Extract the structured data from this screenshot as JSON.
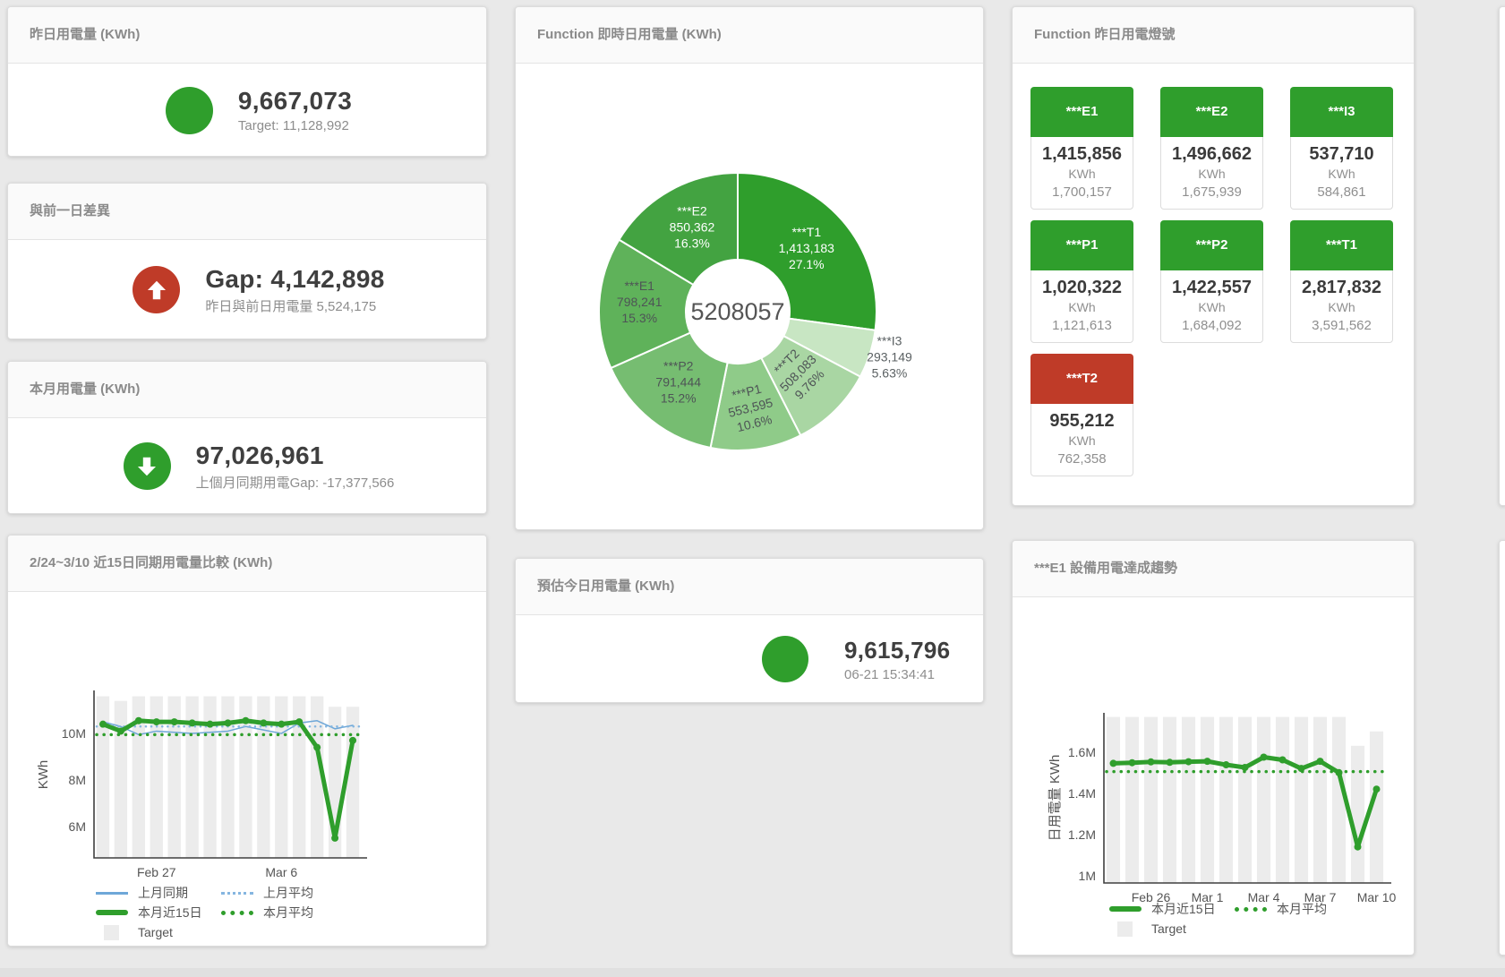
{
  "cards": {
    "yesterday": {
      "title": "昨日用電量 (KWh)",
      "value": "9,667,073",
      "subtitle": "Target: 11,128,992",
      "status_color": "#2f9e2c"
    },
    "day_gap": {
      "title": "與前一日差異",
      "value": "Gap: 4,142,898",
      "subtitle": "昨日與前日用電量 5,524,175",
      "status_color": "#bf3b28"
    },
    "month": {
      "title": "本月用電量 (KWh)",
      "value": "97,026,961",
      "subtitle": "上個月同期用電Gap: -17,377,566",
      "status_color": "#2f9e2c"
    },
    "estimate": {
      "title": "預估今日用電量 (KWh)",
      "value": "9,615,796",
      "subtitle": "06-21 15:34:41",
      "status_color": "#2f9e2c"
    },
    "compare": {
      "title": "2/24~3/10 近15日同期用電量比較 (KWh)"
    },
    "donut": {
      "title": "Function 即時日用電量 (KWh)"
    },
    "trend": {
      "title": "***E1 設備用電達成趨勢"
    },
    "lights": {
      "title": "Function 昨日用電燈號",
      "tiles": [
        {
          "label": "***E1",
          "value": "1,415,856",
          "unit": "KWh",
          "target": "1,700,157",
          "color": "#2f9e2c"
        },
        {
          "label": "***E2",
          "value": "1,496,662",
          "unit": "KWh",
          "target": "1,675,939",
          "color": "#2f9e2c"
        },
        {
          "label": "***I3",
          "value": "537,710",
          "unit": "KWh",
          "target": "584,861",
          "color": "#2f9e2c"
        },
        {
          "label": "***P1",
          "value": "1,020,322",
          "unit": "KWh",
          "target": "1,121,613",
          "color": "#2f9e2c"
        },
        {
          "label": "***P2",
          "value": "1,422,557",
          "unit": "KWh",
          "target": "1,684,092",
          "color": "#2f9e2c"
        },
        {
          "label": "***T1",
          "value": "2,817,832",
          "unit": "KWh",
          "target": "3,591,562",
          "color": "#2f9e2c"
        },
        {
          "label": "***T2",
          "value": "955,212",
          "unit": "KWh",
          "target": "762,358",
          "color": "#bf3b28"
        }
      ]
    }
  },
  "chart_data": [
    {
      "id": "donut",
      "type": "pie",
      "title": "Function 即時日用電量 (KWh)",
      "center_label": "5208057",
      "slices": [
        {
          "name": "***T1",
          "value": 1413183,
          "label_value": "1,413,183",
          "pct": "27.1%",
          "color": "#2f9e2c",
          "text": "#ffffff"
        },
        {
          "name": "***I3",
          "value": 293149,
          "label_value": "293,149",
          "pct": "5.63%",
          "color": "#c8e6c3",
          "text": "#5b6163"
        },
        {
          "name": "***T2",
          "value": 508083,
          "label_value": "508,083",
          "pct": "9.76%",
          "color": "#a9d6a3",
          "text": "#4e5456"
        },
        {
          "name": "***P1",
          "value": 553595,
          "label_value": "553,595",
          "pct": "10.6%",
          "color": "#8fcb89",
          "text": "#4e5456"
        },
        {
          "name": "***P2",
          "value": 791444,
          "label_value": "791,444",
          "pct": "15.2%",
          "color": "#76bd71",
          "text": "#4e5456"
        },
        {
          "name": "***E1",
          "value": 798241,
          "label_value": "798,241",
          "pct": "15.3%",
          "color": "#5fb25a",
          "text": "#4e5456"
        },
        {
          "name": "***E2",
          "value": 850362,
          "label_value": "850,362",
          "pct": "16.3%",
          "color": "#43a341",
          "text": "#ffffff"
        }
      ]
    },
    {
      "id": "compare",
      "type": "line+bar",
      "title": "2/24~3/10 近15日同期用電量比較 (KWh)",
      "ylabel": "KWh",
      "y_unit": "M",
      "y_ticks": [
        {
          "v": 6,
          "label": "6M"
        },
        {
          "v": 8,
          "label": "8M"
        },
        {
          "v": 10,
          "label": "10M"
        }
      ],
      "x_ticks": [
        {
          "i": 3,
          "label": "Feb 27"
        },
        {
          "i": 10,
          "label": "Mar 6"
        }
      ],
      "target": {
        "name": "Target",
        "color": "#ececec",
        "values": [
          11.6,
          11.4,
          11.6,
          11.6,
          11.6,
          11.6,
          11.6,
          11.6,
          11.6,
          11.6,
          11.6,
          11.6,
          11.6,
          11.15,
          11.15
        ]
      },
      "series": [
        {
          "name": "上月同期",
          "color": "#6ea7d8",
          "width": 1.5,
          "values": [
            10.5,
            10.3,
            9.95,
            10.1,
            10.05,
            10.0,
            10.05,
            10.1,
            10.3,
            10.15,
            10.0,
            10.45,
            10.55,
            10.2,
            10.35
          ]
        },
        {
          "name": "上月平均",
          "color": "#85b6e0",
          "width": 2.5,
          "avg": 10.3
        },
        {
          "name": "本月近15日",
          "color": "#2f9e2c",
          "width": 5,
          "markers": true,
          "values": [
            10.4,
            10.1,
            10.55,
            10.5,
            10.5,
            10.45,
            10.4,
            10.45,
            10.55,
            10.45,
            10.4,
            10.5,
            9.4,
            5.5,
            9.7
          ]
        },
        {
          "name": "本月平均",
          "color": "#2f9e2c",
          "width": 3.5,
          "avg": 9.95
        }
      ],
      "legend_rows": [
        [
          {
            "label": "上月同期",
            "swatch": "line",
            "color": "#6ea7d8"
          },
          {
            "label": "上月平均",
            "swatch": "dots",
            "color": "#85b6e0"
          }
        ],
        [
          {
            "label": "本月近15日",
            "swatch": "thick",
            "color": "#2f9e2c"
          },
          {
            "label": "本月平均",
            "swatch": "dots-thick",
            "color": "#2f9e2c"
          }
        ],
        [
          {
            "label": "Target",
            "swatch": "box",
            "color": "#ececec"
          }
        ]
      ]
    },
    {
      "id": "trend",
      "type": "line+bar",
      "title": "***E1 設備用電達成趨勢",
      "ylabel": "日用電量 KWh",
      "y_unit": "M",
      "y_ticks": [
        {
          "v": 1,
          "label": "1M"
        },
        {
          "v": 1.2,
          "label": "1.2M"
        },
        {
          "v": 1.4,
          "label": "1.4M"
        },
        {
          "v": 1.6,
          "label": "1.6M"
        }
      ],
      "x_ticks": [
        {
          "i": 2,
          "label": "Feb 26"
        },
        {
          "i": 5,
          "label": "Mar 1"
        },
        {
          "i": 8,
          "label": "Mar 4"
        },
        {
          "i": 11,
          "label": "Mar 7"
        },
        {
          "i": 14,
          "label": "Mar 10"
        }
      ],
      "target": {
        "name": "Target",
        "color": "#ececec",
        "values": [
          1.77,
          1.77,
          1.77,
          1.77,
          1.77,
          1.77,
          1.77,
          1.77,
          1.77,
          1.77,
          1.77,
          1.77,
          1.77,
          1.63,
          1.7
        ]
      },
      "series": [
        {
          "name": "本月近15日",
          "color": "#2f9e2c",
          "width": 5,
          "markers": true,
          "values": [
            1.545,
            1.548,
            1.552,
            1.55,
            1.553,
            1.555,
            1.538,
            1.525,
            1.575,
            1.562,
            1.52,
            1.555,
            1.5,
            1.14,
            1.42
          ]
        },
        {
          "name": "本月平均",
          "color": "#2f9e2c",
          "width": 3.5,
          "avg": 1.505
        }
      ],
      "legend_rows": [
        [
          {
            "label": "本月近15日",
            "swatch": "thick",
            "color": "#2f9e2c"
          },
          {
            "label": "本月平均",
            "swatch": "dots-thick",
            "color": "#2f9e2c"
          }
        ],
        [
          {
            "label": "Target",
            "swatch": "box",
            "color": "#ececec"
          }
        ]
      ]
    }
  ]
}
